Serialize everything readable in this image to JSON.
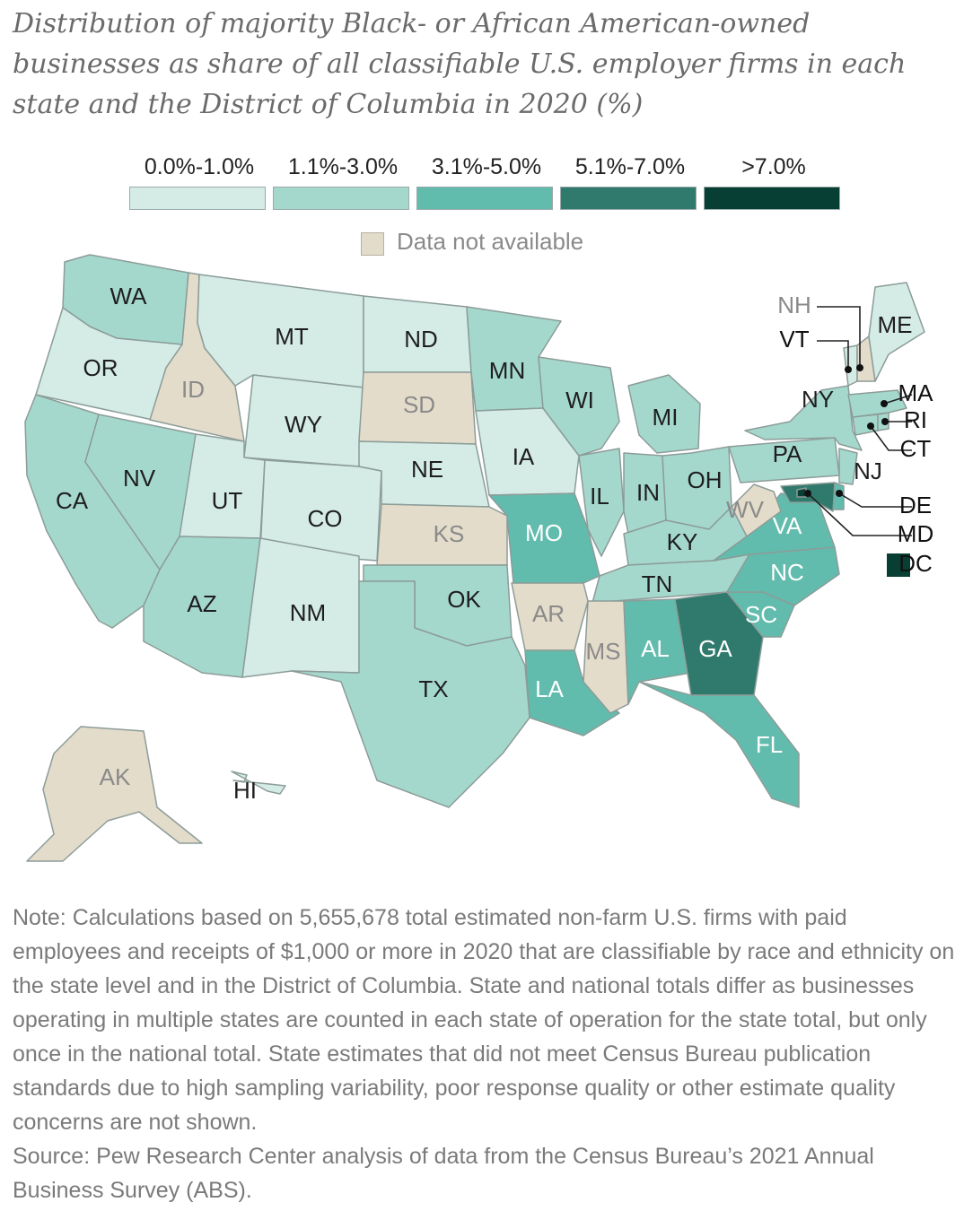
{
  "title": "Distribution of majority Black- or African American-owned businesses as share of all classifiable U.S. employer firms in each state and the District of Columbia in 2020 (%)",
  "legend": {
    "bins": [
      {
        "label": "0.0%-1.0%",
        "color": "#d4ebe6"
      },
      {
        "label": "1.1%-3.0%",
        "color": "#a5d8cd"
      },
      {
        "label": "3.1%-5.0%",
        "color": "#62bcad"
      },
      {
        "label": "5.1%-7.0%",
        "color": "#2f7a6c"
      },
      {
        "label": ">7.0%",
        "color": "#083f34"
      }
    ],
    "not_available": {
      "label": "Data not available",
      "color": "#e4dccb"
    }
  },
  "states": [
    {
      "abbr": "WA",
      "bin": 1
    },
    {
      "abbr": "OR",
      "bin": 0
    },
    {
      "abbr": "CA",
      "bin": 1
    },
    {
      "abbr": "ID",
      "bin": null
    },
    {
      "abbr": "NV",
      "bin": 1
    },
    {
      "abbr": "MT",
      "bin": 0
    },
    {
      "abbr": "WY",
      "bin": 0
    },
    {
      "abbr": "UT",
      "bin": 0
    },
    {
      "abbr": "CO",
      "bin": 0
    },
    {
      "abbr": "AZ",
      "bin": 1
    },
    {
      "abbr": "NM",
      "bin": 0
    },
    {
      "abbr": "ND",
      "bin": 0
    },
    {
      "abbr": "SD",
      "bin": null
    },
    {
      "abbr": "NE",
      "bin": 0
    },
    {
      "abbr": "KS",
      "bin": null
    },
    {
      "abbr": "OK",
      "bin": 1
    },
    {
      "abbr": "TX",
      "bin": 1
    },
    {
      "abbr": "MN",
      "bin": 1
    },
    {
      "abbr": "IA",
      "bin": 0
    },
    {
      "abbr": "MO",
      "bin": 2
    },
    {
      "abbr": "AR",
      "bin": null
    },
    {
      "abbr": "LA",
      "bin": 2
    },
    {
      "abbr": "WI",
      "bin": 1
    },
    {
      "abbr": "IL",
      "bin": 1
    },
    {
      "abbr": "MI",
      "bin": 1
    },
    {
      "abbr": "IN",
      "bin": 1
    },
    {
      "abbr": "OH",
      "bin": 1
    },
    {
      "abbr": "KY",
      "bin": 1
    },
    {
      "abbr": "TN",
      "bin": 1
    },
    {
      "abbr": "MS",
      "bin": null
    },
    {
      "abbr": "AL",
      "bin": 2
    },
    {
      "abbr": "GA",
      "bin": 3
    },
    {
      "abbr": "FL",
      "bin": 2
    },
    {
      "abbr": "SC",
      "bin": 2
    },
    {
      "abbr": "NC",
      "bin": 2
    },
    {
      "abbr": "VA",
      "bin": 2
    },
    {
      "abbr": "WV",
      "bin": null
    },
    {
      "abbr": "PA",
      "bin": 1
    },
    {
      "abbr": "NY",
      "bin": 1
    },
    {
      "abbr": "NJ",
      "bin": 1
    },
    {
      "abbr": "DE",
      "bin": 2
    },
    {
      "abbr": "MD",
      "bin": 3
    },
    {
      "abbr": "DC",
      "bin": 4
    },
    {
      "abbr": "CT",
      "bin": 1
    },
    {
      "abbr": "RI",
      "bin": 1
    },
    {
      "abbr": "MA",
      "bin": 1
    },
    {
      "abbr": "VT",
      "bin": 0
    },
    {
      "abbr": "NH",
      "bin": null
    },
    {
      "abbr": "ME",
      "bin": 0
    },
    {
      "abbr": "AK",
      "bin": null
    },
    {
      "abbr": "HI",
      "bin": 0
    }
  ],
  "note": "Note: Calculations based on 5,655,678 total estimated non-farm U.S. firms with paid employees and receipts of $1,000 or more in 2020 that are classifiable by race and ethnicity on the state level and in the District of Columbia. State and national totals differ as businesses operating in multiple states are counted in each state of operation for the state total, but only once in the national total. State estimates that did not meet Census Bureau publication standards due to high sampling variability, poor response quality or other estimate quality concerns are not shown.",
  "source": "Source: Pew Research Center analysis of data from the Census Bureau’s 2021 Annual Business Survey (ABS)."
}
